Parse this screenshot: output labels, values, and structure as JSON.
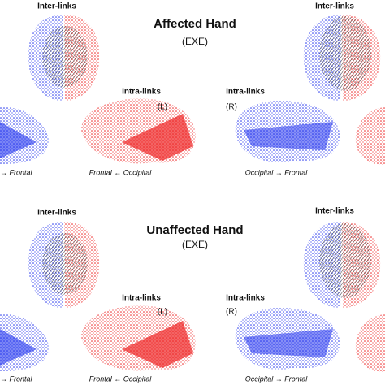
{
  "panels": [
    {
      "inter_left": "Inter-links",
      "title": "Affected Hand",
      "subtitle": "(EXE)",
      "inter_right": "Inter-links",
      "intra_left": "Intra-links",
      "side_left": "(L)",
      "intra_right": "Intra-links",
      "side_right": "(R)",
      "caption_edge": "→ Frontal",
      "caption_left": "Frontal ← Occipital",
      "caption_right": "Occipital → Frontal"
    },
    {
      "inter_left": "Inter-links",
      "title": "Unaffected Hand",
      "subtitle": "(EXE)",
      "inter_right": "Inter-links",
      "intra_left": "Intra-links",
      "side_left": "(L)",
      "intra_right": "Intra-links",
      "side_right": "(R)",
      "caption_edge": "→ Frontal",
      "caption_left": "Frontal ← Occipital",
      "caption_right": "Occipital → Frontal"
    }
  ]
}
